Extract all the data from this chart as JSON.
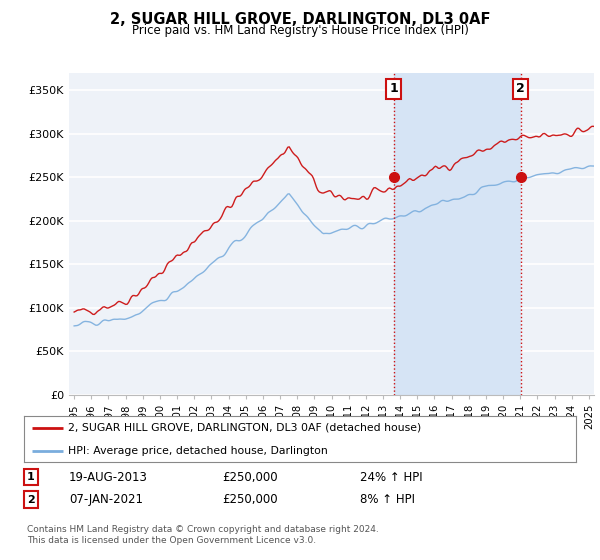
{
  "title": "2, SUGAR HILL GROVE, DARLINGTON, DL3 0AF",
  "subtitle": "Price paid vs. HM Land Registry's House Price Index (HPI)",
  "ylim": [
    0,
    370000
  ],
  "yticks": [
    0,
    50000,
    100000,
    150000,
    200000,
    250000,
    300000,
    350000
  ],
  "ytick_labels": [
    "£0",
    "£50K",
    "£100K",
    "£150K",
    "£200K",
    "£250K",
    "£300K",
    "£350K"
  ],
  "bg_color": "#eef2f8",
  "plot_bg_color": "#eef2f8",
  "grid_color": "#ffffff",
  "highlight_color": "#d6e4f5",
  "red_color": "#cc1111",
  "blue_color": "#7aaddd",
  "sale1_year": 2013.63,
  "sale1_price": 250000,
  "sale2_year": 2021.02,
  "sale2_price": 250000,
  "legend_line1": "2, SUGAR HILL GROVE, DARLINGTON, DL3 0AF (detached house)",
  "legend_line2": "HPI: Average price, detached house, Darlington",
  "annotation1_date": "19-AUG-2013",
  "annotation1_price": "£250,000",
  "annotation1_hpi": "24% ↑ HPI",
  "annotation2_date": "07-JAN-2021",
  "annotation2_price": "£250,000",
  "annotation2_hpi": "8% ↑ HPI",
  "footer": "Contains HM Land Registry data © Crown copyright and database right 2024.\nThis data is licensed under the Open Government Licence v3.0.",
  "x_start_year": 1995,
  "x_end_year": 2025
}
